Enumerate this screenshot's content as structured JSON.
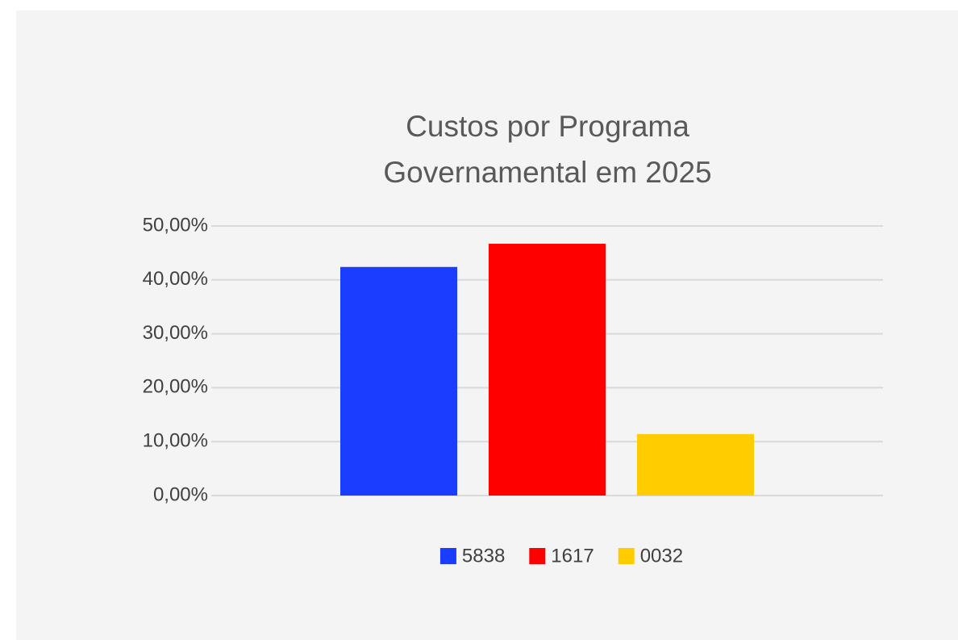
{
  "chart_data": {
    "type": "bar",
    "title": "Custos por Programa Governamental em 2025",
    "categories": [
      null
    ],
    "series": [
      {
        "name": "5838",
        "color": "#1a3dff",
        "values": [
          42.4
        ]
      },
      {
        "name": "1617",
        "color": "#ff0000",
        "values": [
          46.7
        ]
      },
      {
        "name": "0032",
        "color": "#ffcc00",
        "values": [
          11.4
        ]
      }
    ],
    "ylim": [
      0,
      50
    ],
    "yticks": [
      {
        "value": 0,
        "label": "0,00%"
      },
      {
        "value": 10,
        "label": "10,00%"
      },
      {
        "value": 20,
        "label": "20,00%"
      },
      {
        "value": 30,
        "label": "30,00%"
      },
      {
        "value": 40,
        "label": "40,00%"
      },
      {
        "value": 50,
        "label": "50,00%"
      }
    ],
    "grid": true,
    "legend": "bottom"
  }
}
